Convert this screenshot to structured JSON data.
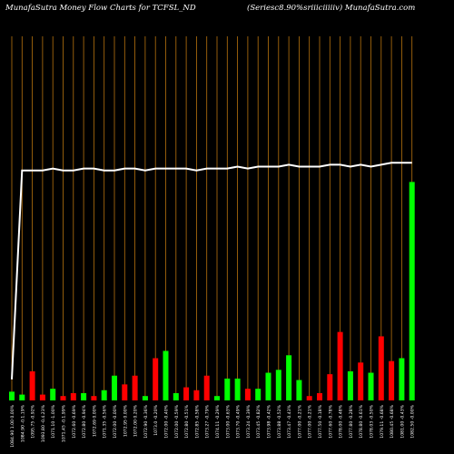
{
  "header": {
    "left": "MunafaSutra  Money Flow  Charts for TCFSL_ND",
    "right": "(Seriesc8.90%sriiiciiiiiv) MunafaSutra.com"
  },
  "colors": {
    "background": "#000000",
    "gridline": "#b8730e",
    "up": "#00ff00",
    "down": "#ff0000",
    "price_line": "#ffffff",
    "label": "#ffffff"
  },
  "chart_data": {
    "type": "bar",
    "title": "MunafaSutra  Money Flow  Charts for TCFSL_ND",
    "subtitle": "(Seriesc8.90%sriiiciiiiiv) MunafaSutra.com",
    "grid": true,
    "categories": [
      "1084.90 1.00 0.00%",
      "1084.90 -0.1.19%",
      "1095.75 -0.92%",
      "1093.80 -0.4.23%",
      "1071.10 -1.00%",
      "1071.45 -0.1.99%",
      "1072.60 -0.69%",
      "1072.80 -0.94%",
      "1072.69 0.00%",
      "1071.35 -0.56%",
      "1072.00 -0.00%",
      "1072.95 0.00%",
      "1072.00 0.20%",
      "1072.90 -0.36%",
      "1073.0 -0.20%",
      "1072.00 -0.40%",
      "1072.00 -0.59%",
      "1072.80 -0.51%",
      "1072.85 -0.58%",
      "1073.27 -0.79%",
      "1074.11 -0.29%",
      "1073.00 -0.63%",
      "1073.70 -0.49%",
      "1073.24 -0.39%",
      "1073.45 -0.82%",
      "1073.98 -0.42%",
      "1073.88 -0.52%",
      "1073.47 -0.43%",
      "1077.00 -0.21%",
      "1077.00 -0.21%",
      "1077.50 -0.18%",
      "1077.60 -0.78%",
      "1078.00 -0.48%",
      "1077.80 -0.28%",
      "1078.80 -0.61%",
      "1078.03 -0.50%",
      "1079.11 -0.68%",
      "1080.45 -0.68%",
      "1081.00 -0.43%",
      "1082.50 -0.00%"
    ],
    "money_flow": [
      {
        "value": 6,
        "direction": "up"
      },
      {
        "value": 4,
        "direction": "up"
      },
      {
        "value": 20,
        "direction": "down"
      },
      {
        "value": 4,
        "direction": "down"
      },
      {
        "value": 8,
        "direction": "up"
      },
      {
        "value": 3,
        "direction": "down"
      },
      {
        "value": 5,
        "direction": "down"
      },
      {
        "value": 5,
        "direction": "up"
      },
      {
        "value": 3,
        "direction": "down"
      },
      {
        "value": 7,
        "direction": "up"
      },
      {
        "value": 17,
        "direction": "up"
      },
      {
        "value": 11,
        "direction": "down"
      },
      {
        "value": 17,
        "direction": "down"
      },
      {
        "value": 3,
        "direction": "up"
      },
      {
        "value": 29,
        "direction": "down"
      },
      {
        "value": 34,
        "direction": "up"
      },
      {
        "value": 5,
        "direction": "up"
      },
      {
        "value": 9,
        "direction": "down"
      },
      {
        "value": 7,
        "direction": "down"
      },
      {
        "value": 17,
        "direction": "down"
      },
      {
        "value": 3,
        "direction": "up"
      },
      {
        "value": 15,
        "direction": "up"
      },
      {
        "value": 15,
        "direction": "up"
      },
      {
        "value": 8,
        "direction": "down"
      },
      {
        "value": 8,
        "direction": "up"
      },
      {
        "value": 19,
        "direction": "up"
      },
      {
        "value": 21,
        "direction": "up"
      },
      {
        "value": 31,
        "direction": "up"
      },
      {
        "value": 14,
        "direction": "up"
      },
      {
        "value": 3,
        "direction": "down"
      },
      {
        "value": 5,
        "direction": "down"
      },
      {
        "value": 18,
        "direction": "down"
      },
      {
        "value": 47,
        "direction": "down"
      },
      {
        "value": 20,
        "direction": "up"
      },
      {
        "value": 26,
        "direction": "down"
      },
      {
        "value": 19,
        "direction": "up"
      },
      {
        "value": 44,
        "direction": "down"
      },
      {
        "value": 27,
        "direction": "down"
      },
      {
        "value": 29,
        "direction": "up"
      },
      {
        "value": 150,
        "direction": "up"
      }
    ],
    "price": [
      1071,
      1180,
      1180,
      1180,
      1181,
      1180,
      1180,
      1181,
      1181,
      1180,
      1180,
      1181,
      1181,
      1180,
      1181,
      1181,
      1181,
      1181,
      1180,
      1181,
      1181,
      1181,
      1182,
      1181,
      1182,
      1182,
      1182,
      1183,
      1182,
      1182,
      1182,
      1183,
      1183,
      1182,
      1183,
      1182,
      1183,
      1184,
      1184,
      1184
    ],
    "ylim": [
      0,
      250
    ],
    "price_ylim": [
      1060,
      1250
    ],
    "xlabel": "",
    "ylabel": ""
  }
}
